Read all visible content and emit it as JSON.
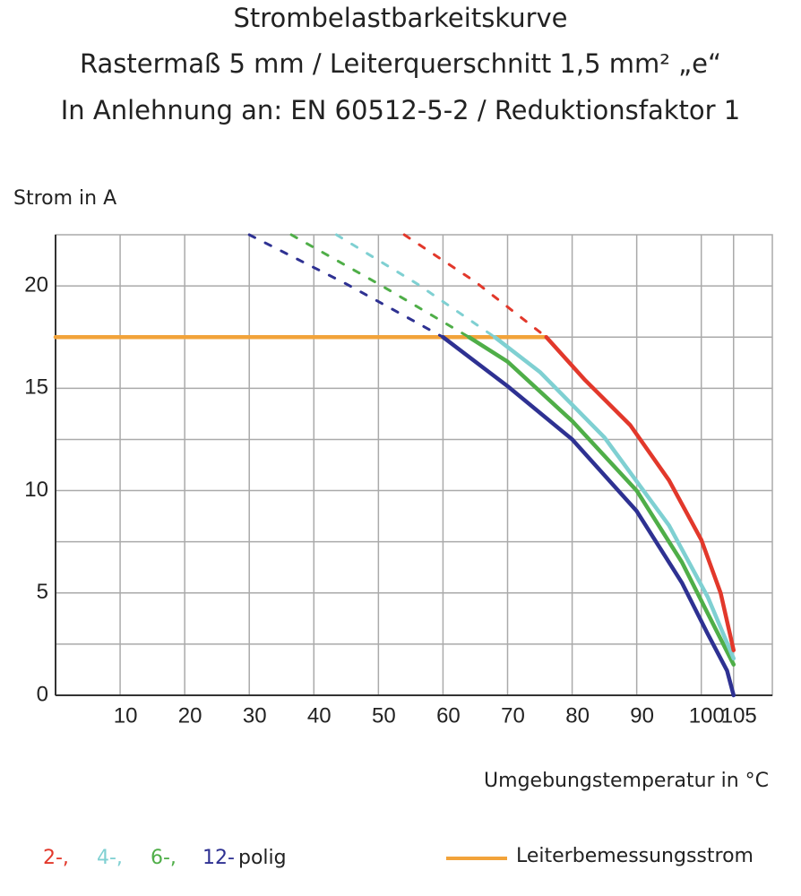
{
  "chart_data": {
    "type": "line",
    "title": "Strombelastbarkeitskurve",
    "subtitle": [
      "Rastermaß 5 mm / Leiterquerschnitt 1,5 mm² „e“",
      "In Anlehnung an: EN 60512-5-2 / Reduktionsfaktor 1"
    ],
    "y_label": "Strom in A",
    "x_label": "Umgebungstemperatur in °C",
    "xlim": [
      0,
      111
    ],
    "ylim": [
      0,
      22.5
    ],
    "xticks": [
      10,
      20,
      30,
      40,
      50,
      60,
      70,
      80,
      90,
      100,
      105
    ],
    "yticks": [
      0,
      5,
      10,
      15,
      20
    ],
    "grid": true,
    "minor_grid": true,
    "series": [
      {
        "color": "#f2a33a",
        "style": "solid",
        "x": [
          0,
          76
        ],
        "values": [
          17.5,
          17.5
        ]
      },
      {
        "color": "#e2382b",
        "style": "dashed",
        "x": [
          54,
          65,
          76
        ],
        "values": [
          22.5,
          20.2,
          17.5
        ]
      },
      {
        "color": "#7fd0d2",
        "style": "dashed",
        "x": [
          43.5,
          56,
          68
        ],
        "values": [
          22.5,
          20.1,
          17.5
        ]
      },
      {
        "color": "#4fae48",
        "style": "dashed",
        "x": [
          36.5,
          50,
          64
        ],
        "values": [
          22.5,
          20.1,
          17.5
        ]
      },
      {
        "color": "#2e3192",
        "style": "dashed",
        "x": [
          30,
          45,
          60
        ],
        "values": [
          22.5,
          20.1,
          17.5
        ]
      },
      {
        "color": "#2e3192",
        "style": "solid",
        "x": [
          60,
          70,
          80,
          90,
          97,
          101,
          104,
          105
        ],
        "values": [
          17.5,
          15.1,
          12.5,
          9.0,
          5.5,
          3.0,
          1.2,
          0
        ]
      },
      {
        "color": "#4fae48",
        "style": "solid",
        "x": [
          64,
          70,
          80,
          90,
          97,
          101,
          105
        ],
        "values": [
          17.5,
          16.3,
          13.4,
          10.0,
          6.5,
          4.0,
          1.5
        ]
      },
      {
        "color": "#7fd0d2",
        "style": "solid",
        "x": [
          68,
          75,
          85,
          95,
          101,
          105
        ],
        "values": [
          17.5,
          15.8,
          12.6,
          8.3,
          4.8,
          1.8
        ]
      },
      {
        "color": "#e2382b",
        "style": "solid",
        "x": [
          76,
          82,
          89,
          95,
          100,
          103,
          105
        ],
        "values": [
          17.5,
          15.4,
          13.2,
          10.5,
          7.6,
          5.0,
          2.2
        ]
      }
    ],
    "legend": {
      "entries": [
        {
          "label": "2-,",
          "color": "#e2382b"
        },
        {
          "label": "4-,",
          "color": "#7fd0d2"
        },
        {
          "label": "6-,",
          "color": "#4fae48"
        },
        {
          "label": "12-",
          "color": "#2e3192"
        }
      ],
      "suffix": "polig",
      "line_label": "Leiterbemessungsstrom",
      "line_color": "#f2a33a"
    }
  }
}
